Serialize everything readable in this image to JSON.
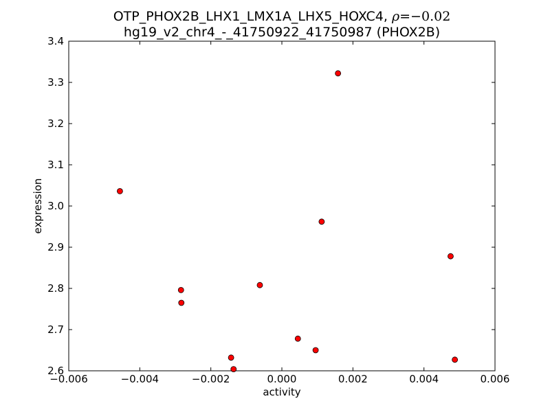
{
  "chart_data": {
    "type": "scatter",
    "title_line1_prefix": "OTP_PHOX2B_LHX1_LMX1A_LHX5_HOXC4, ",
    "title_rho_symbol": "ρ",
    "title_rho_value": "=−0.02",
    "title_line2": "hg19_v2_chr4_-_41750922_41750987 (PHOX2B)",
    "xlabel": "activity",
    "ylabel": "expression",
    "xlim": [
      -0.006,
      0.006
    ],
    "ylim": [
      2.6,
      3.4
    ],
    "x_ticks": [
      -0.006,
      -0.004,
      -0.002,
      0.0,
      0.002,
      0.004,
      0.006
    ],
    "x_tick_labels": [
      "−0.006",
      "−0.004",
      "−0.002",
      "0.000",
      "0.002",
      "0.004",
      "0.006"
    ],
    "y_ticks": [
      2.6,
      2.7,
      2.8,
      2.9,
      3.0,
      3.1,
      3.2,
      3.3,
      3.4
    ],
    "y_tick_labels": [
      "2.6",
      "2.7",
      "2.8",
      "2.9",
      "3.0",
      "3.1",
      "3.2",
      "3.3",
      "3.4"
    ],
    "grid": false,
    "marker_color": "#ff0000",
    "marker_edge_color": "#000000",
    "points": [
      {
        "x": -0.00456,
        "y": 3.036
      },
      {
        "x": -0.00284,
        "y": 2.796
      },
      {
        "x": -0.00283,
        "y": 2.765
      },
      {
        "x": -0.00143,
        "y": 2.632
      },
      {
        "x": -0.00136,
        "y": 2.604
      },
      {
        "x": -0.00062,
        "y": 2.808
      },
      {
        "x": 0.00045,
        "y": 2.678
      },
      {
        "x": 0.00095,
        "y": 2.65
      },
      {
        "x": 0.00112,
        "y": 2.962
      },
      {
        "x": 0.00158,
        "y": 3.322
      },
      {
        "x": 0.00475,
        "y": 2.878
      },
      {
        "x": 0.00487,
        "y": 2.627
      }
    ]
  }
}
